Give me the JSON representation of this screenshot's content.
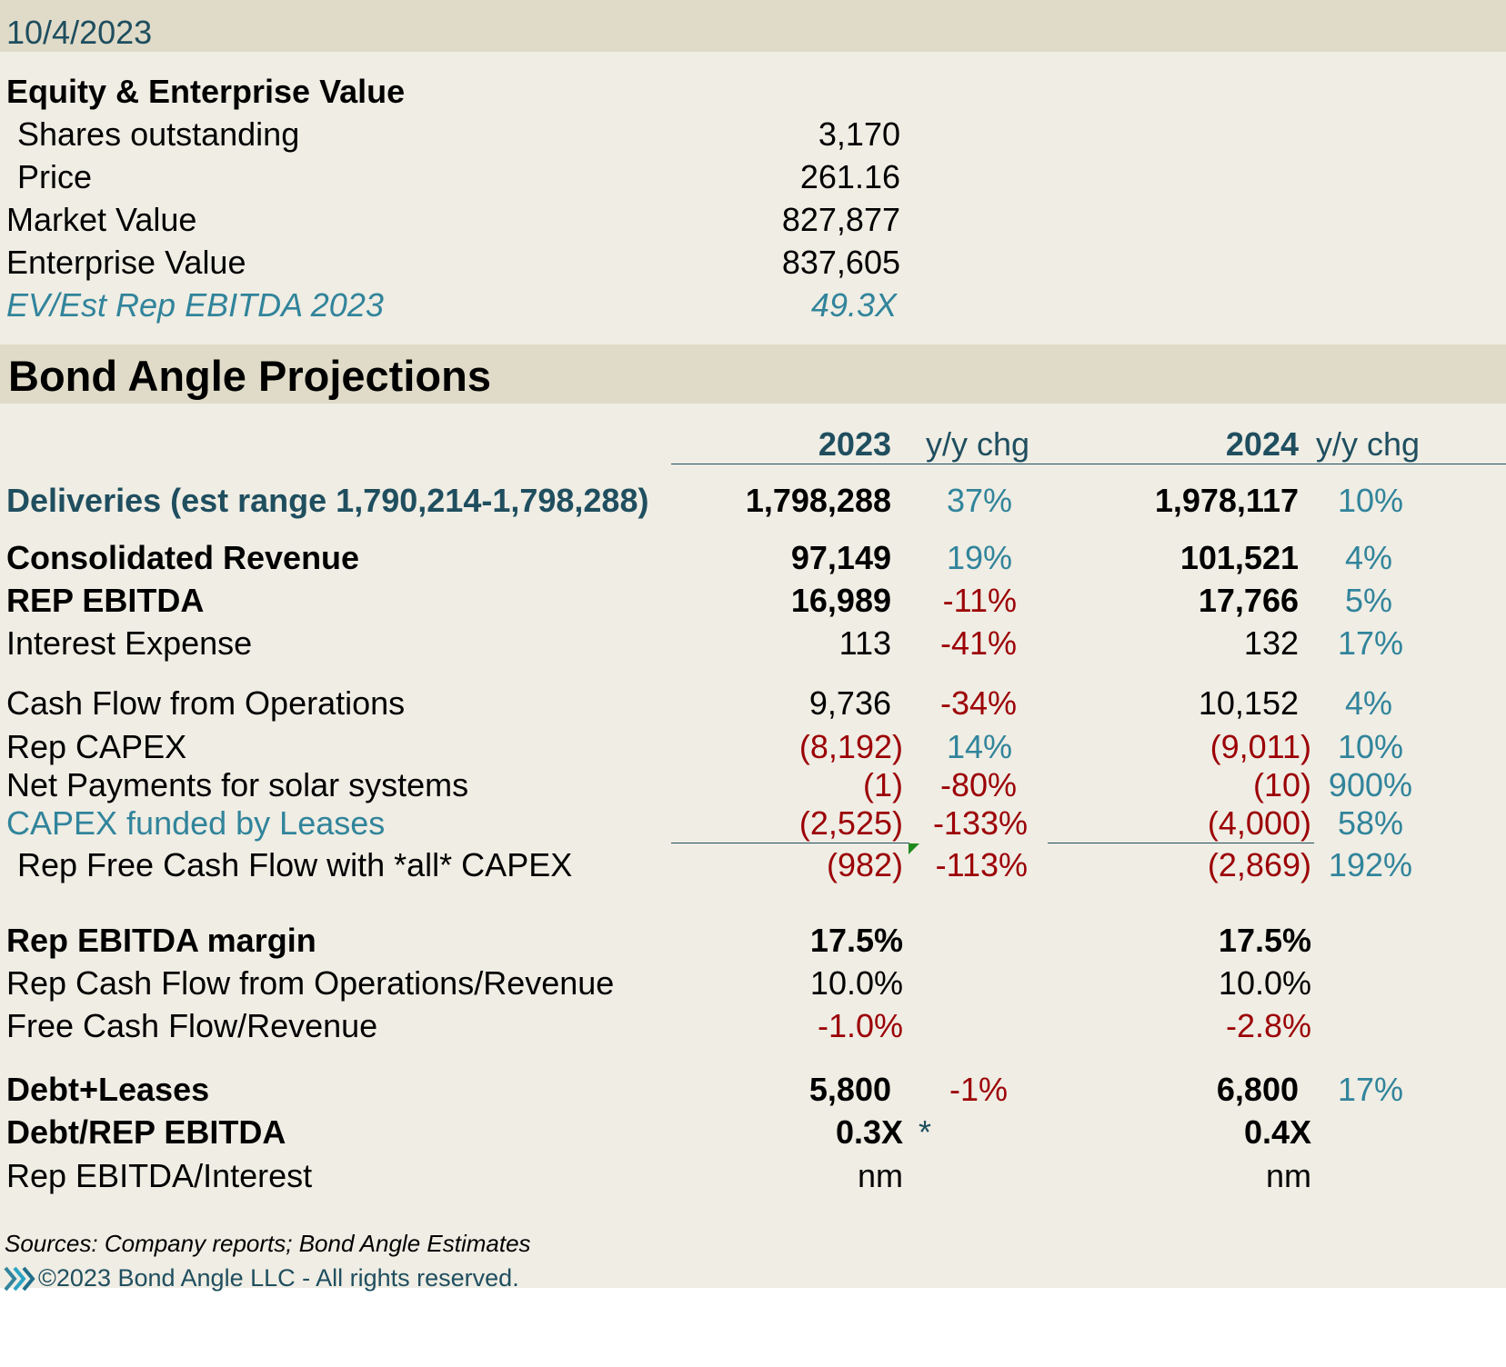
{
  "date": "10/4/2023",
  "equity": {
    "heading": "Equity & Enterprise Value",
    "rows": [
      {
        "label": "Shares outstanding",
        "value": "3,170"
      },
      {
        "label": "Price",
        "value": "261.16"
      },
      {
        "label": "Market Value",
        "value": "827,877"
      },
      {
        "label": "Enterprise Value",
        "value": "837,605"
      },
      {
        "label": "EV/Est Rep EBITDA 2023",
        "value": "49.3X"
      }
    ]
  },
  "projections": {
    "heading": "Bond Angle Projections",
    "col_2023": "2023",
    "col_2024": "2024",
    "yy_label": "y/y chg",
    "deliveries": {
      "label": "Deliveries (est range 1,790,214-1,798,288)",
      "v2023": "1,798,288",
      "c2023": "37%",
      "v2024": "1,978,117",
      "c2024": "10%"
    },
    "revenue": {
      "label": "Consolidated Revenue",
      "v2023": "97,149",
      "c2023": "19%",
      "v2024": "101,521",
      "c2024": "4%"
    },
    "ebitda": {
      "label": "REP EBITDA",
      "v2023": "16,989",
      "c2023": "-11%",
      "v2024": "17,766",
      "c2024": "5%"
    },
    "interest": {
      "label": "Interest Expense",
      "v2023": "113",
      "c2023": "-41%",
      "v2024": "132",
      "c2024": "17%"
    },
    "cfo": {
      "label": "Cash Flow from Operations",
      "v2023": "9,736",
      "c2023": "-34%",
      "v2024": "10,152",
      "c2024": "4%"
    },
    "capex": {
      "label": "Rep CAPEX",
      "v2023": "(8,192)",
      "c2023": "14%",
      "v2024": "(9,011)",
      "c2024": "10%"
    },
    "solar": {
      "label": "Net Payments for solar systems",
      "v2023": "(1)",
      "c2023": "-80%",
      "v2024": "(10)",
      "c2024": "900%"
    },
    "leases": {
      "label": "CAPEX funded by Leases",
      "v2023": "(2,525)",
      "c2023": "-133%",
      "v2024": "(4,000)",
      "c2024": "58%"
    },
    "fcf": {
      "label": "Rep Free Cash Flow with *all* CAPEX",
      "v2023": "(982)",
      "c2023": "-113%",
      "v2024": "(2,869)",
      "c2024": "192%"
    },
    "margin": {
      "label": "Rep EBITDA margin",
      "v2023": "17.5%",
      "v2024": "17.5%"
    },
    "cfo_rev": {
      "label": "Rep Cash Flow from Operations/Revenue",
      "v2023": "10.0%",
      "v2024": "10.0%"
    },
    "fcf_rev": {
      "label": "Free Cash Flow/Revenue",
      "v2023": "-1.0%",
      "v2024": "-2.8%"
    },
    "debt": {
      "label": "Debt+Leases",
      "v2023": "5,800",
      "c2023": "-1%",
      "v2024": "6,800",
      "c2024": "17%"
    },
    "debt_ebitda": {
      "label": "Debt/REP EBITDA",
      "v2023": "0.3X",
      "note": "*",
      "v2024": "0.4X"
    },
    "ebitda_int": {
      "label": "Rep EBITDA/Interest",
      "v2023": "nm",
      "v2024": "nm"
    }
  },
  "footer": {
    "sources": "Sources: Company reports; Bond Angle Estimates",
    "copyright": "©2023 Bond Angle LLC - All rights reserved."
  },
  "colors": {
    "background": "#efede4",
    "band": "#e0dbc8",
    "teal": "#31849b",
    "dark_teal": "#1f4e5f",
    "negative": "#9c0006"
  },
  "icons": [
    "bond-angle-logo-icon"
  ]
}
